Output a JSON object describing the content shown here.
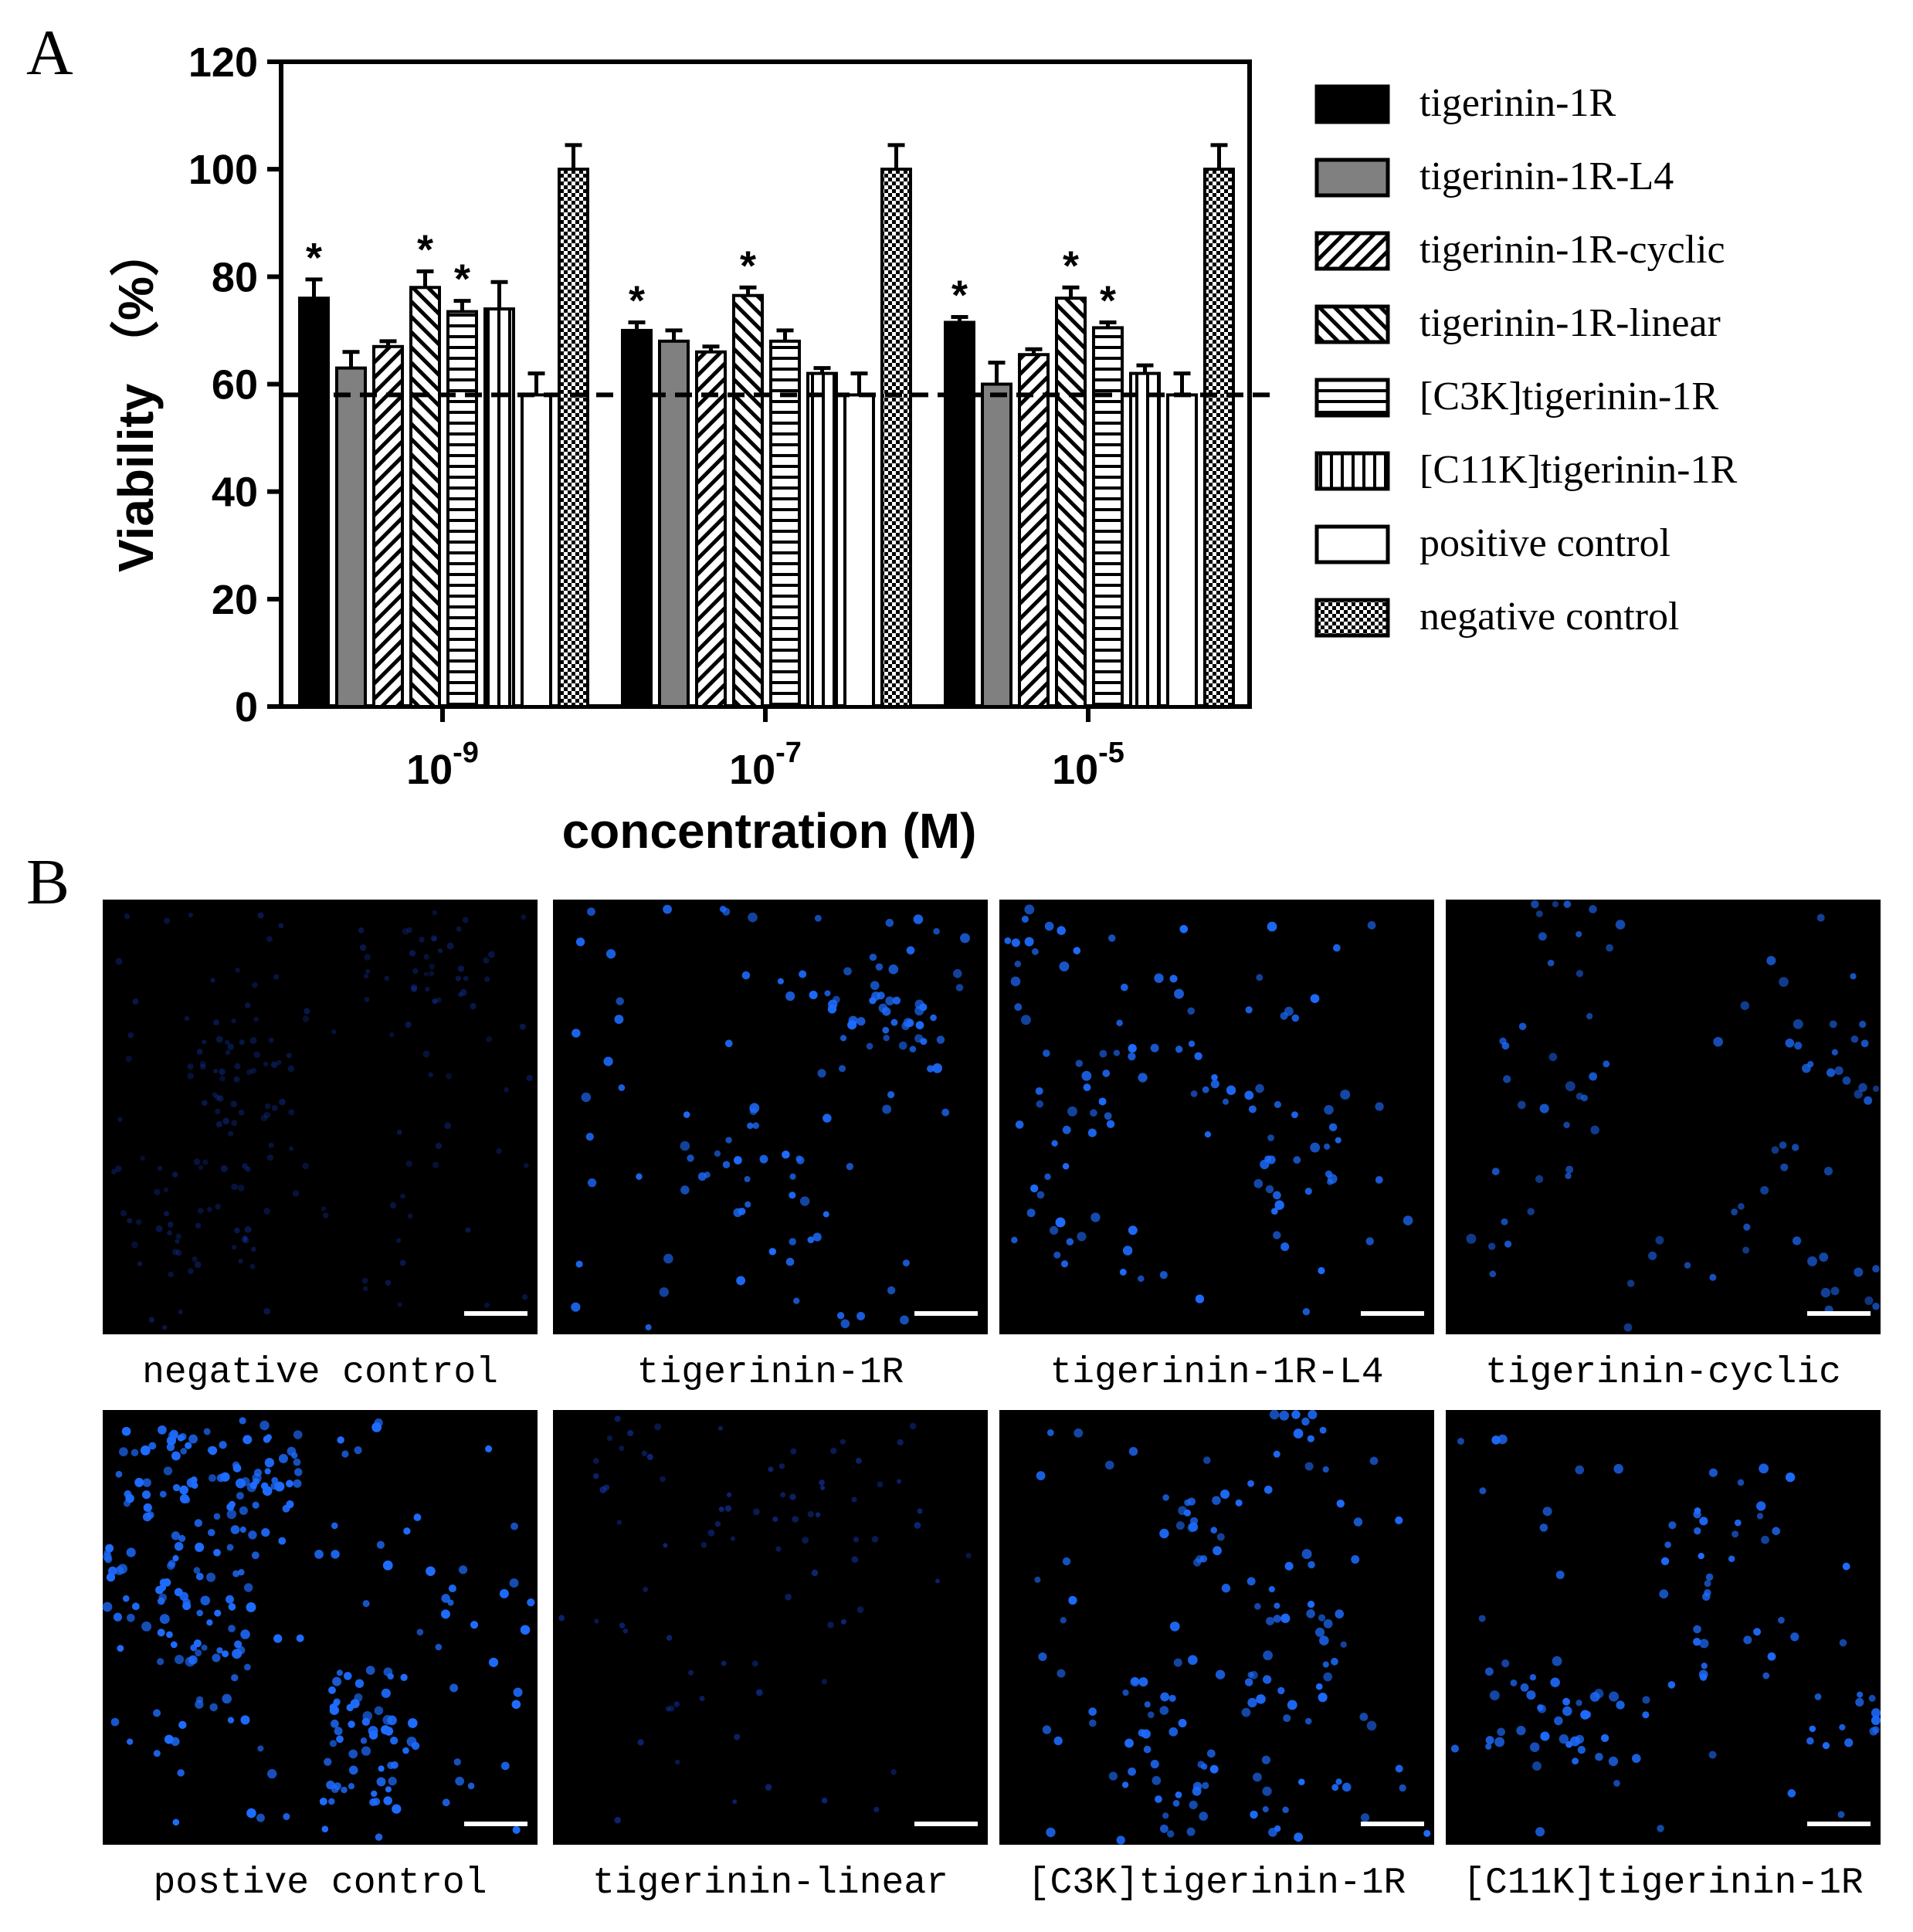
{
  "panel_labels": [
    "A",
    "B"
  ],
  "chart_data": {
    "type": "bar",
    "xlabel": "concentration (M)",
    "ylabel": "Viability （%）",
    "ylim": [
      0,
      120
    ],
    "yticks": [
      0,
      20,
      40,
      60,
      80,
      100,
      120
    ],
    "categories": [
      {
        "base": "10",
        "exp": "-9"
      },
      {
        "base": "10",
        "exp": "-7"
      },
      {
        "base": "10",
        "exp": "-5"
      }
    ],
    "reference_line": 58,
    "legend_position": "right",
    "series": [
      {
        "name": "tigerinin-1R",
        "pattern": "solid-black",
        "values": [
          76,
          70,
          71.5
        ],
        "errors": [
          3.5,
          1.5,
          1
        ],
        "significant": [
          true,
          true,
          true
        ]
      },
      {
        "name": "tigerinin-1R-L4",
        "pattern": "solid-gray",
        "values": [
          63,
          68,
          60
        ],
        "errors": [
          3,
          2,
          4
        ],
        "significant": [
          false,
          false,
          false
        ]
      },
      {
        "name": "tigerinin-1R-cyclic",
        "pattern": "hatch-right",
        "values": [
          67,
          66,
          65.5
        ],
        "errors": [
          1,
          1,
          1
        ],
        "significant": [
          false,
          false,
          false
        ]
      },
      {
        "name": "tigerinin-1R-linear",
        "pattern": "hatch-left",
        "values": [
          78,
          76.5,
          76
        ],
        "errors": [
          3,
          1.5,
          2
        ],
        "significant": [
          true,
          true,
          true
        ]
      },
      {
        "name": "[C3K]tigerinin-1R",
        "pattern": "horizontal",
        "values": [
          73.5,
          68,
          70.5
        ],
        "errors": [
          2,
          2,
          1
        ],
        "significant": [
          true,
          false,
          true
        ]
      },
      {
        "name": "[C11K]tigerinin-1R",
        "pattern": "vertical",
        "values": [
          74,
          62,
          62
        ],
        "errors": [
          5,
          1,
          1.5
        ],
        "significant": [
          false,
          false,
          false
        ]
      },
      {
        "name": "positive control",
        "pattern": "white",
        "values": [
          58,
          58,
          58
        ],
        "errors": [
          4,
          4,
          4
        ],
        "significant": [
          false,
          false,
          false
        ]
      },
      {
        "name": "negative control",
        "pattern": "dots",
        "values": [
          100,
          100,
          100
        ],
        "errors": [
          4.5,
          4.5,
          4.5
        ],
        "significant": [
          false,
          false,
          false
        ]
      }
    ],
    "significance_marker": "*"
  },
  "micrographs": [
    {
      "caption": "negative control",
      "density": 0.35,
      "brightness": 0.35,
      "seed": 11,
      "count": 190
    },
    {
      "caption": "tigerinin-1R",
      "density": 0.5,
      "brightness": 0.9,
      "seed": 23,
      "count": 120
    },
    {
      "caption": "tigerinin-1R-L4",
      "density": 0.5,
      "brightness": 0.9,
      "seed": 37,
      "count": 115
    },
    {
      "caption": "tigerinin-cyclic",
      "density": 0.3,
      "brightness": 0.7,
      "seed": 41,
      "count": 85
    },
    {
      "caption": "postive control",
      "density": 0.9,
      "brightness": 1.0,
      "seed": 53,
      "count": 280
    },
    {
      "caption": "tigerinin-linear",
      "density": 0.3,
      "brightness": 0.6,
      "seed": 67,
      "count": 80
    },
    {
      "caption": "[C3K]tigerinin-1R",
      "density": 0.6,
      "brightness": 0.9,
      "seed": 71,
      "count": 150
    },
    {
      "caption": "[C11K]tigerinin-1R",
      "density": 0.45,
      "brightness": 0.9,
      "seed": 89,
      "count": 110
    }
  ],
  "colors": {
    "nucleus": "#1e6cff",
    "nucleus_dim": "#1234a8",
    "background": "#000000",
    "scale_bar": "#ffffff",
    "gray_bar": "#808080"
  }
}
